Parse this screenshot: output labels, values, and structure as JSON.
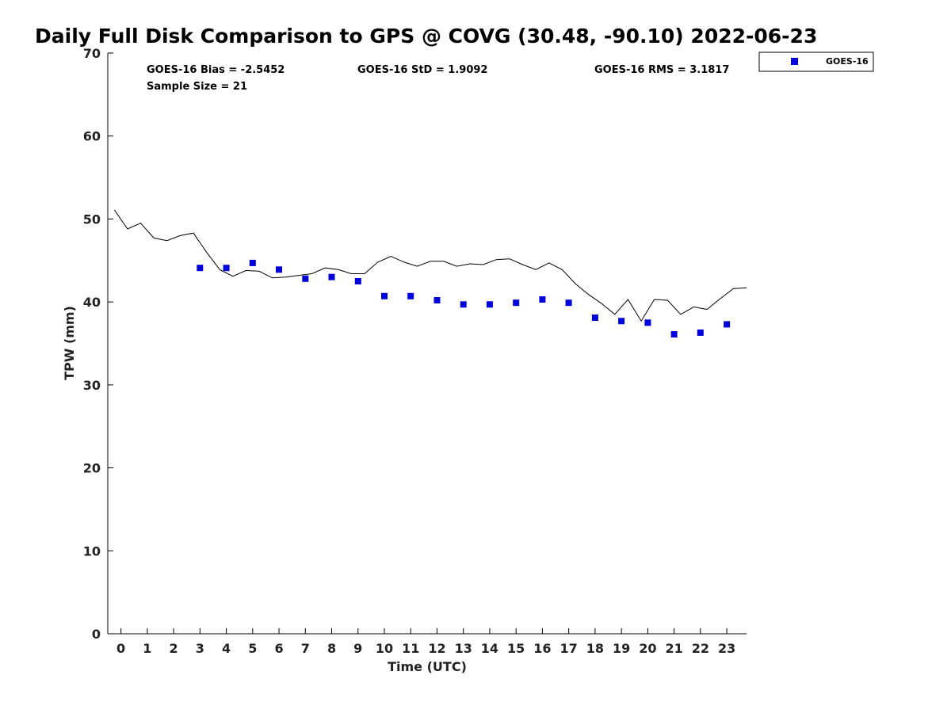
{
  "chart_data": {
    "type": "scatter",
    "title": "Daily Full Disk Comparison to GPS @ COVG (30.48, -90.10) 2022-06-23",
    "xlabel": "Time (UTC)",
    "ylabel": "TPW (mm)",
    "xlim": [
      -0.5,
      23.75
    ],
    "ylim": [
      0,
      70
    ],
    "x_ticks": [
      "0",
      "1",
      "2",
      "3",
      "4",
      "5",
      "6",
      "7",
      "8",
      "9",
      "10",
      "11",
      "12",
      "13",
      "14",
      "15",
      "16",
      "17",
      "18",
      "19",
      "20",
      "21",
      "22",
      "23"
    ],
    "y_ticks": [
      "0",
      "10",
      "20",
      "30",
      "40",
      "50",
      "60",
      "70"
    ],
    "grid": false,
    "legend_position": "outside-top-right",
    "stats": {
      "bias": "GOES-16 Bias = -2.5452",
      "std": "GOES-16 StD = 1.9092",
      "rms": "GOES-16 RMS = 3.1817",
      "sample": "Sample Size = 21"
    },
    "series": [
      {
        "name": "GOES-16",
        "kind": "markers",
        "color": "#0000dd",
        "x": [
          3,
          4,
          5,
          6,
          7,
          8,
          9,
          10,
          11,
          12,
          13,
          14,
          15,
          16,
          17,
          18,
          19,
          20,
          21,
          22,
          23
        ],
        "y": [
          44.1,
          44.1,
          44.7,
          43.9,
          42.8,
          43.0,
          42.5,
          40.7,
          40.7,
          40.2,
          39.7,
          39.7,
          39.9,
          40.3,
          39.9,
          38.1,
          37.7,
          37.5,
          36.1,
          36.3,
          37.3
        ]
      },
      {
        "kind": "line",
        "color": "#000000",
        "x": [
          -0.25,
          0.25,
          0.75,
          1.25,
          1.75,
          2.25,
          2.75,
          3.25,
          3.75,
          4.25,
          4.75,
          5.25,
          5.75,
          6.25,
          6.75,
          7.25,
          7.75,
          8.25,
          8.75,
          9.25,
          9.75,
          10.25,
          10.75,
          11.25,
          11.75,
          12.25,
          12.75,
          13.25,
          13.75,
          14.25,
          14.75,
          15.25,
          15.75,
          16.25,
          16.75,
          17.25,
          17.75,
          18.25,
          18.75,
          19.25,
          19.75,
          20.25,
          20.75,
          21.25,
          21.75,
          22.25,
          22.75,
          23.25,
          23.75
        ],
        "y": [
          51.1,
          48.8,
          49.5,
          47.7,
          47.4,
          48.0,
          48.3,
          46.0,
          43.9,
          43.1,
          43.8,
          43.7,
          42.9,
          43.0,
          43.2,
          43.4,
          44.1,
          43.9,
          43.4,
          43.4,
          44.8,
          45.5,
          44.8,
          44.3,
          44.9,
          44.9,
          44.3,
          44.6,
          44.5,
          45.1,
          45.2,
          44.5,
          43.9,
          44.7,
          43.9,
          42.2,
          40.9,
          39.8,
          38.5,
          40.3,
          37.7,
          40.3,
          40.2,
          38.5,
          39.4,
          39.1,
          40.4,
          41.6,
          41.7
        ]
      }
    ]
  }
}
